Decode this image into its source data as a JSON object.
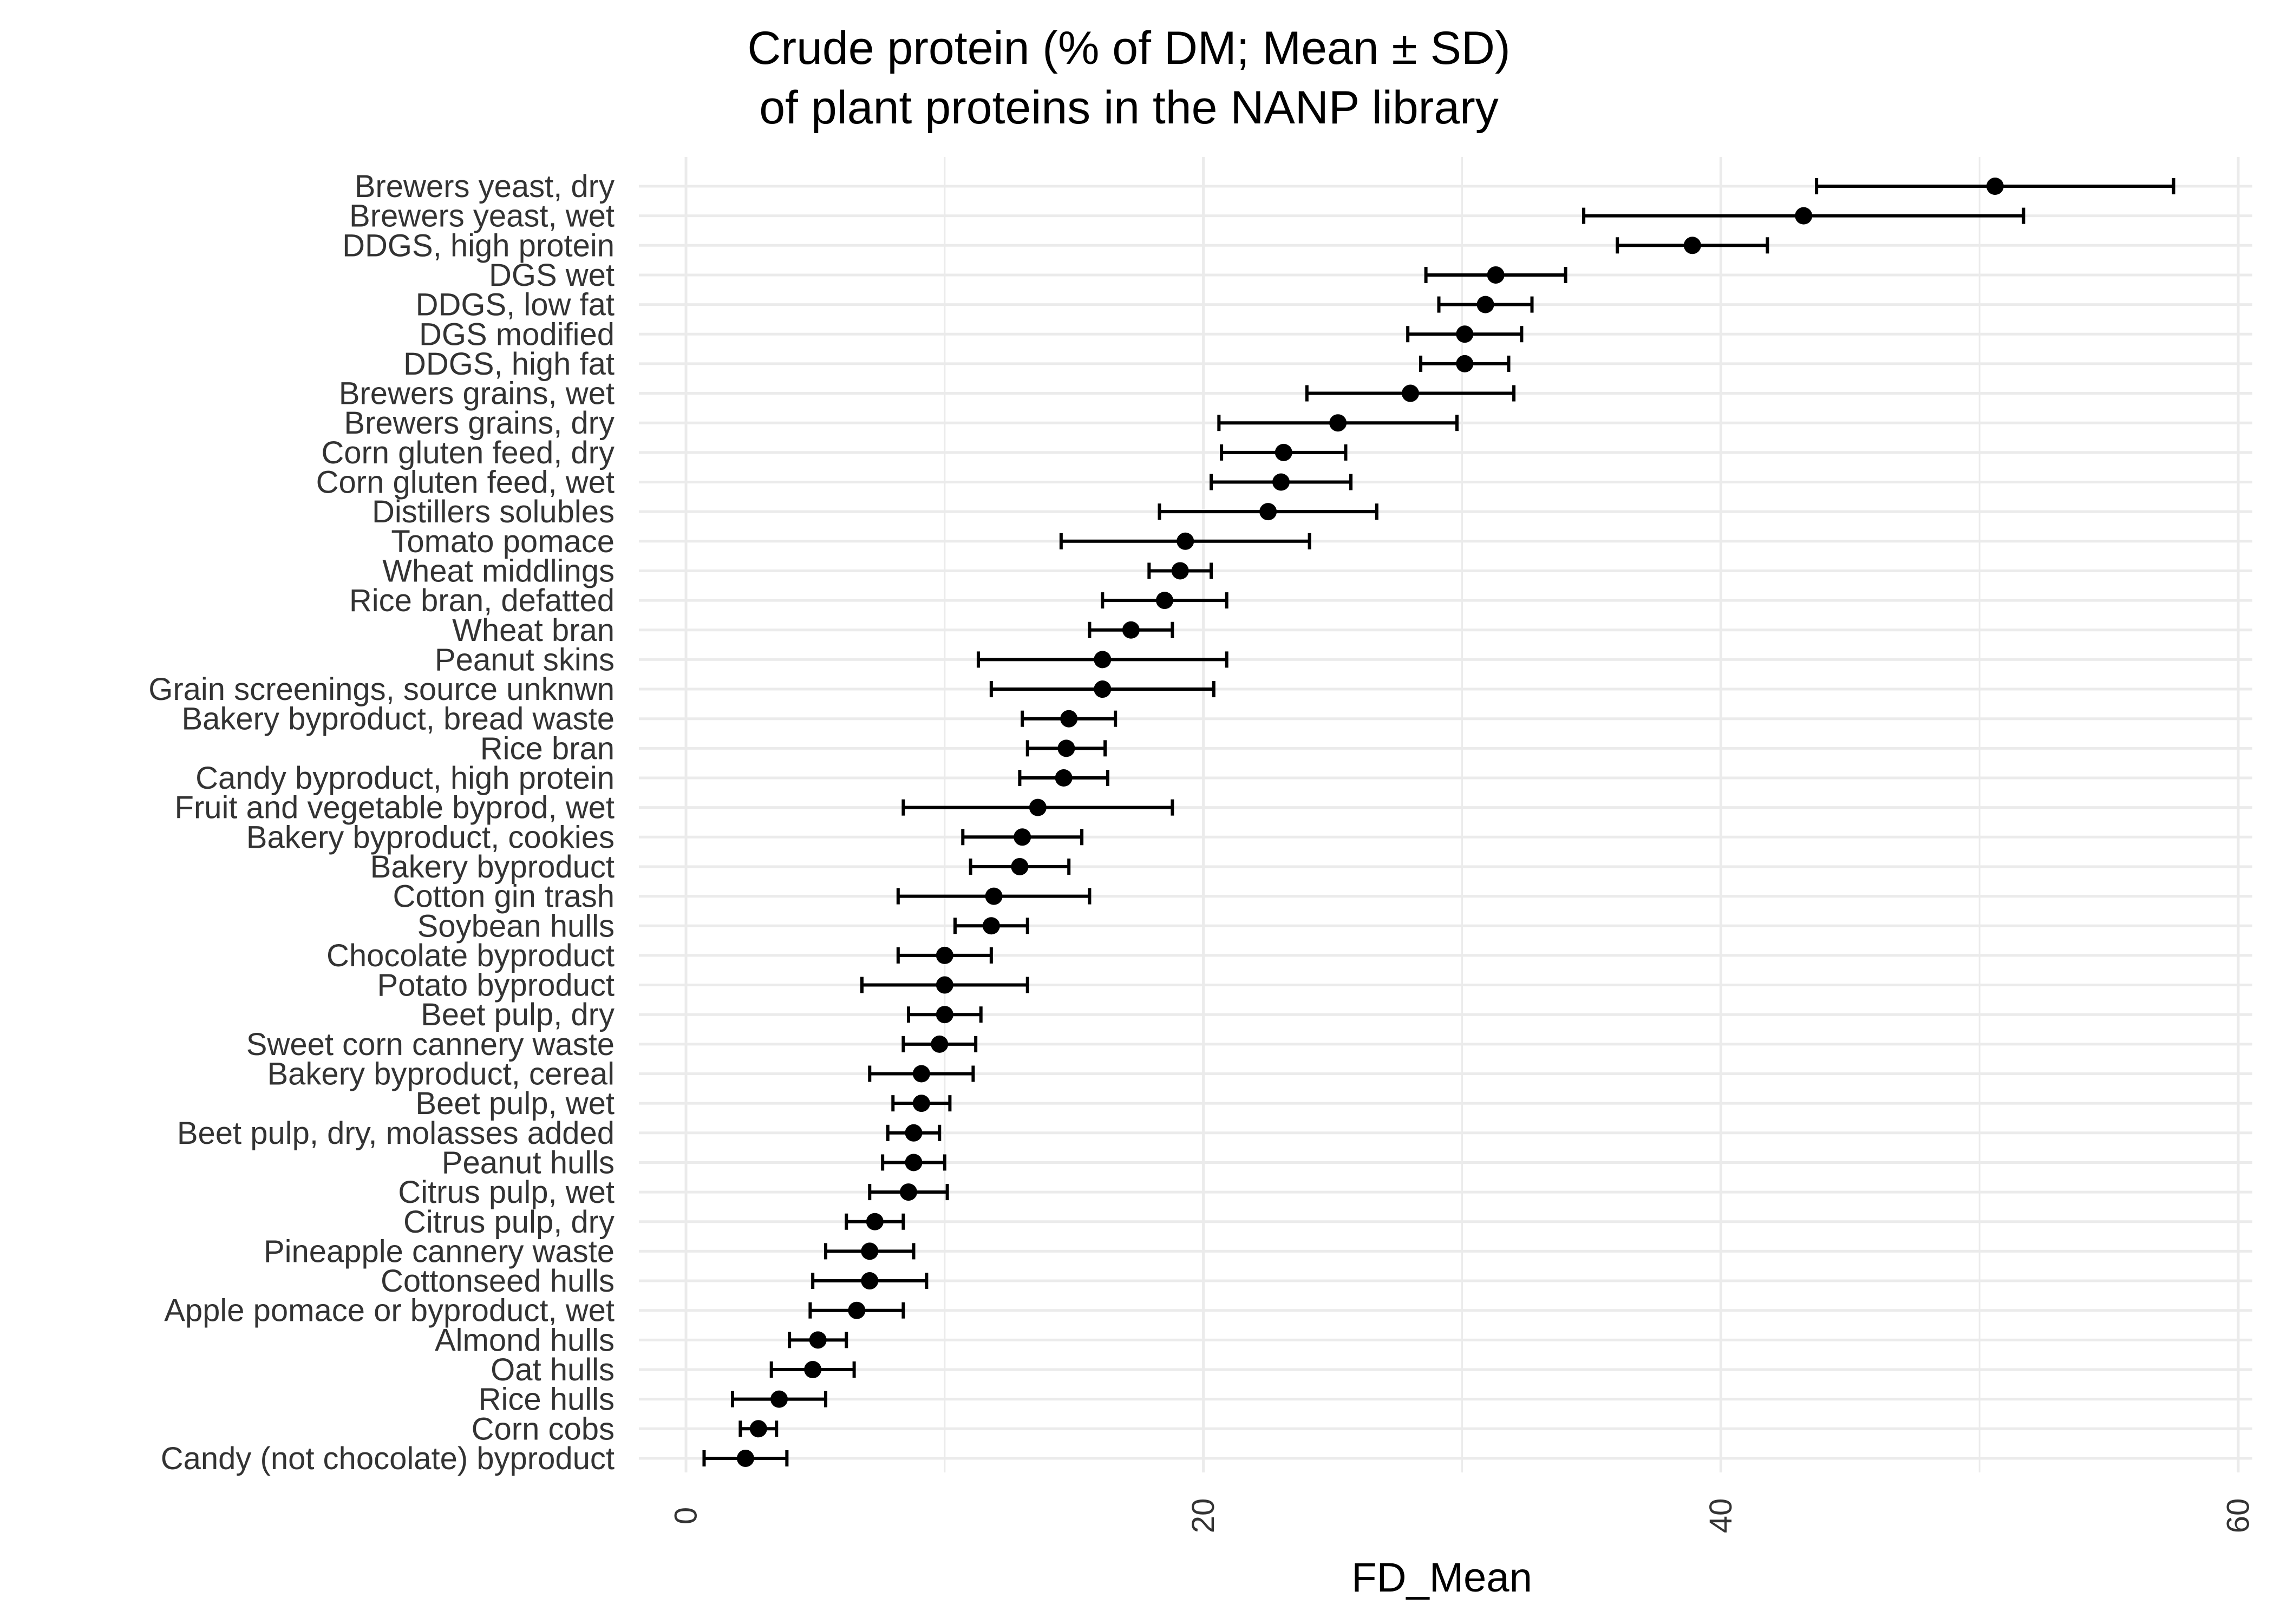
{
  "chart_data": {
    "type": "scatter",
    "subtype": "dot-with-error-bars",
    "title": [
      "Crude protein (% of DM; Mean ± SD)",
      "of plant proteins in the NANP library"
    ],
    "xlabel": "FD_Mean",
    "ylabel": "",
    "xlim": [
      0,
      60
    ],
    "xticks": [
      0,
      20,
      40,
      60
    ],
    "grid": true,
    "legend": "none",
    "colors": {
      "point": "#000000",
      "errorbar": "#000000",
      "grid": "#ebebeb",
      "tick_label": "#333333"
    },
    "categories": [
      "Brewers yeast, dry",
      "Brewers yeast, wet",
      "DDGS, high protein",
      "DGS wet",
      "DDGS, low fat",
      "DGS modified",
      "DDGS, high fat",
      "Brewers grains, wet",
      "Brewers grains, dry",
      "Corn gluten feed, dry",
      "Corn gluten feed, wet",
      "Distillers solubles",
      "Tomato pomace",
      "Wheat middlings",
      "Rice bran, defatted",
      "Wheat bran",
      "Peanut skins",
      "Grain screenings, source unknwn",
      "Bakery byproduct, bread waste",
      "Rice bran",
      "Candy byproduct, high protein",
      "Fruit and vegetable byprod, wet",
      "Bakery byproduct, cookies",
      "Bakery byproduct",
      "Cotton gin trash",
      "Soybean hulls",
      "Chocolate byproduct",
      "Potato byproduct",
      "Beet pulp, dry",
      "Sweet corn cannery waste",
      "Bakery byproduct, cereal",
      "Beet pulp, wet",
      "Beet pulp, dry, molasses added",
      "Peanut hulls",
      "Citrus pulp, wet",
      "Citrus pulp, dry",
      "Pineapple cannery waste",
      "Cottonseed hulls",
      "Apple pomace or byproduct, wet",
      "Almond hulls",
      "Oat hulls",
      "Rice hulls",
      "Corn cobs",
      "Candy (not chocolate) byproduct"
    ],
    "mean": [
      50.6,
      43.2,
      38.9,
      31.3,
      30.9,
      30.1,
      30.1,
      28.0,
      25.2,
      23.1,
      23.0,
      22.5,
      19.3,
      19.1,
      18.5,
      17.2,
      16.1,
      16.1,
      14.8,
      14.7,
      14.6,
      13.6,
      13.0,
      12.9,
      11.9,
      11.8,
      10.0,
      10.0,
      10.0,
      9.8,
      9.1,
      9.1,
      8.8,
      8.8,
      8.6,
      7.3,
      7.1,
      7.1,
      6.6,
      5.1,
      4.9,
      3.6,
      2.8,
      2.3
    ],
    "sd": [
      6.9,
      8.5,
      2.9,
      2.7,
      1.8,
      2.2,
      1.7,
      4.0,
      4.6,
      2.4,
      2.7,
      4.2,
      4.8,
      1.2,
      2.4,
      1.6,
      4.8,
      4.3,
      1.8,
      1.5,
      1.7,
      5.2,
      2.3,
      1.9,
      3.7,
      1.4,
      1.8,
      3.2,
      1.4,
      1.4,
      2.0,
      1.1,
      1.0,
      1.2,
      1.5,
      1.1,
      1.7,
      2.2,
      1.8,
      1.1,
      1.6,
      1.8,
      0.7,
      1.6
    ]
  }
}
